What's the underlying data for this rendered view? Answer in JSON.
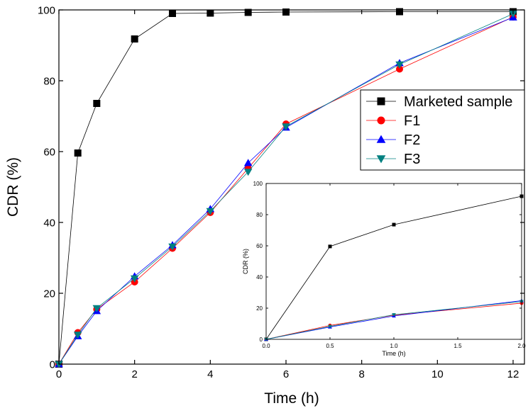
{
  "chart_data": [
    {
      "type": "line",
      "xlabel": "Time (h)",
      "ylabel": "CDR (%)",
      "xlim": [
        0,
        12.3
      ],
      "ylim": [
        0,
        100
      ],
      "xticks": [
        "0",
        "2",
        "4",
        "6",
        "8",
        "10",
        "12"
      ],
      "yticks": [
        "0",
        "20",
        "40",
        "60",
        "80",
        "100"
      ],
      "legend_position": "top-right",
      "series": [
        {
          "name": "Marketed sample",
          "color": "#000000",
          "marker": "square",
          "x": [
            0,
            0.5,
            1,
            2,
            3,
            4,
            5,
            6,
            9,
            12
          ],
          "y": [
            0,
            59.6,
            73.6,
            91.8,
            99.0,
            99.1,
            99.3,
            99.4,
            99.5,
            99.5
          ]
        },
        {
          "name": "F1",
          "color": "#ff0000",
          "marker": "circle",
          "x": [
            0,
            0.5,
            1,
            2,
            3,
            4,
            5,
            6,
            9,
            12
          ],
          "y": [
            0,
            8.9,
            15.5,
            23.2,
            32.7,
            42.8,
            55.3,
            67.8,
            83.3,
            98.0
          ]
        },
        {
          "name": "F2",
          "color": "#0000ff",
          "marker": "triangle-up",
          "x": [
            0,
            0.5,
            1,
            2,
            3,
            4,
            5,
            6,
            9,
            12
          ],
          "y": [
            0,
            7.9,
            15.0,
            24.8,
            33.6,
            43.8,
            56.8,
            66.8,
            85.0,
            97.9
          ]
        },
        {
          "name": "F3",
          "color": "#008080",
          "marker": "triangle-down",
          "x": [
            0,
            0.5,
            1,
            2,
            3,
            4,
            5,
            6,
            9,
            12
          ],
          "y": [
            0,
            8.3,
            15.8,
            24.2,
            33.2,
            43.2,
            54.3,
            67.1,
            84.6,
            98.9
          ]
        }
      ]
    },
    {
      "type": "line",
      "xlabel": "Time (h)",
      "ylabel": "CDR (%)",
      "xlim": [
        0,
        2
      ],
      "ylim": [
        0,
        100
      ],
      "xticks": [
        "0.0",
        "0.5",
        "1.0",
        "1.5",
        "2.0"
      ],
      "yticks": [
        "0",
        "20",
        "40",
        "60",
        "80",
        "100"
      ],
      "series": [
        {
          "name": "Marketed sample",
          "color": "#000000",
          "marker": "square",
          "x": [
            0,
            0.5,
            1,
            2
          ],
          "y": [
            0,
            59.6,
            73.6,
            91.8
          ]
        },
        {
          "name": "F1",
          "color": "#ff0000",
          "marker": "circle",
          "x": [
            0,
            0.5,
            1,
            2
          ],
          "y": [
            0,
            8.9,
            15.5,
            23.2
          ]
        },
        {
          "name": "F2",
          "color": "#0000ff",
          "marker": "triangle-up",
          "x": [
            0,
            0.5,
            1,
            2
          ],
          "y": [
            0,
            7.9,
            15.0,
            24.8
          ]
        },
        {
          "name": "F3",
          "color": "#008080",
          "marker": "triangle-down",
          "x": [
            0,
            0.5,
            1,
            2
          ],
          "y": [
            0,
            8.3,
            15.8,
            24.2
          ]
        }
      ]
    }
  ]
}
